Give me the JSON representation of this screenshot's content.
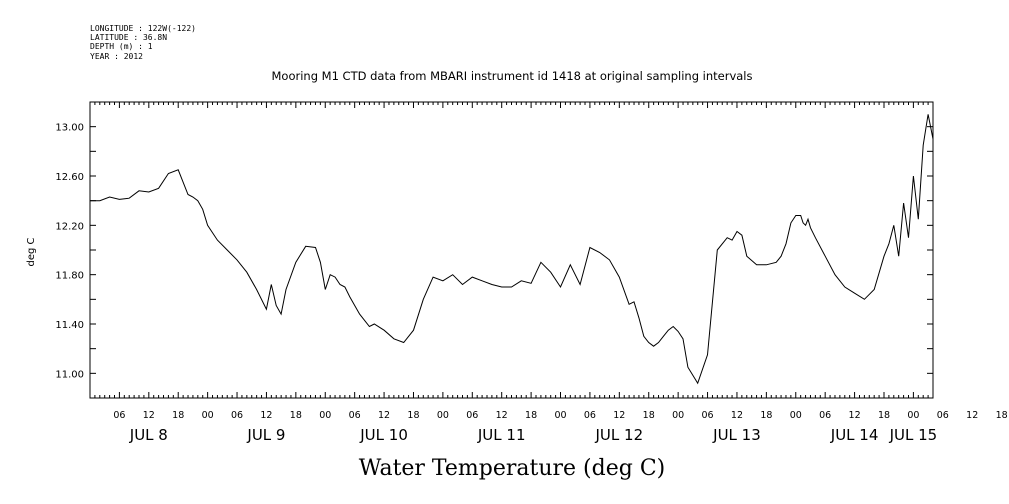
{
  "header": {
    "meta_lines": [
      "LONGITUDE : 122W(-122)",
      "LATITUDE : 36.8N",
      "DEPTH (m) : 1",
      "YEAR : 2012"
    ]
  },
  "chart_data": {
    "type": "line",
    "title": "Mooring M1 CTD data from MBARI instrument id 1418 at original sampling intervals",
    "xlabel": "Water Temperature (deg C)",
    "ylabel": "deg C",
    "xlim_hours": [
      0,
      172
    ],
    "ylim": [
      10.8,
      13.2
    ],
    "grid": false,
    "y_ticks": [
      "11.00",
      "11.40",
      "11.80",
      "12.20",
      "12.60",
      "13.00"
    ],
    "x_hour_labels": [
      "06",
      "12",
      "18",
      "00",
      "06",
      "12",
      "18",
      "00",
      "06",
      "12",
      "18",
      "00",
      "06",
      "12",
      "18",
      "00",
      "06",
      "12",
      "18",
      "00",
      "06",
      "12",
      "18",
      "00",
      "06",
      "12",
      "18",
      "00",
      "06",
      "12",
      "18",
      "00",
      "06",
      "12",
      "18",
      "00",
      "06",
      "12",
      "18",
      "00"
    ],
    "x_day_labels": [
      "JUL  8",
      "JUL  9",
      "JUL 10",
      "JUL 11",
      "JUL 12",
      "JUL 13",
      "JUL 14",
      "JUL 15"
    ],
    "series": [
      {
        "name": "",
        "color": "#000000",
        "x_hours": [
          0,
          2,
          4,
          6,
          8,
          10,
          12,
          14,
          16,
          18,
          20,
          21,
          22,
          23,
          24,
          26,
          28,
          30,
          32,
          34,
          36,
          37,
          38,
          39,
          40,
          42,
          44,
          46,
          47,
          48,
          49,
          50,
          51,
          52,
          53,
          54,
          55,
          56,
          57,
          58,
          60,
          62,
          64,
          66,
          68,
          70,
          72,
          74,
          76,
          78,
          80,
          82,
          84,
          86,
          88,
          90,
          92,
          94,
          96,
          98,
          100,
          102,
          104,
          106,
          108,
          110,
          111,
          112,
          113,
          114,
          115,
          116,
          117,
          118,
          119,
          120,
          121,
          122,
          124,
          126,
          128,
          130,
          131,
          132,
          133,
          134,
          136,
          138,
          140,
          141,
          142,
          143,
          144,
          145,
          145.5,
          146,
          146.5,
          147,
          148,
          150,
          152,
          154,
          156,
          158,
          160,
          162,
          163,
          164,
          165,
          166,
          167,
          168,
          169,
          170,
          171,
          172
        ],
        "y_values": [
          12.4,
          12.4,
          12.43,
          12.41,
          12.42,
          12.48,
          12.47,
          12.5,
          12.62,
          12.65,
          12.45,
          12.43,
          12.4,
          12.33,
          12.2,
          12.08,
          12.0,
          11.92,
          11.82,
          11.68,
          11.52,
          11.72,
          11.55,
          11.48,
          11.68,
          11.9,
          12.03,
          12.02,
          11.9,
          11.68,
          11.8,
          11.78,
          11.72,
          11.7,
          11.62,
          11.55,
          11.48,
          11.43,
          11.38,
          11.4,
          11.35,
          11.28,
          11.25,
          11.35,
          11.6,
          11.78,
          11.75,
          11.8,
          11.72,
          11.78,
          11.75,
          11.72,
          11.7,
          11.7,
          11.75,
          11.73,
          11.9,
          11.82,
          11.7,
          11.88,
          11.72,
          12.02,
          11.98,
          11.92,
          11.78,
          11.56,
          11.58,
          11.45,
          11.3,
          11.25,
          11.22,
          11.25,
          11.3,
          11.35,
          11.38,
          11.34,
          11.28,
          11.05,
          10.92,
          11.15,
          12.0,
          12.1,
          12.08,
          12.15,
          12.12,
          11.95,
          11.88,
          11.88,
          11.9,
          11.95,
          12.05,
          12.22,
          12.28,
          12.28,
          12.22,
          12.2,
          12.25,
          12.18,
          12.1,
          11.95,
          11.8,
          11.7,
          11.65,
          11.6,
          11.68,
          11.95,
          12.05,
          12.2,
          11.95,
          12.38,
          12.1,
          12.6,
          12.25,
          12.85,
          13.1,
          12.9
        ]
      }
    ]
  }
}
